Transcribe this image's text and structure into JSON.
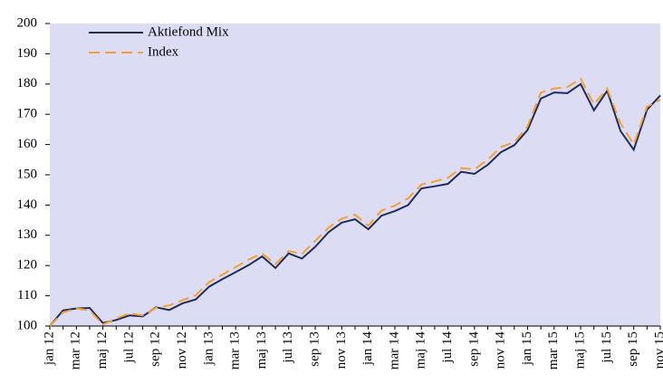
{
  "chart_data": {
    "type": "line",
    "categories": [
      "jan 12",
      null,
      "mar 12",
      null,
      "maj 12",
      null,
      "jul 12",
      null,
      "sep 12",
      null,
      "nov 12",
      null,
      "jan 13",
      null,
      "mar 13",
      null,
      "maj 13",
      null,
      "jul 13",
      null,
      "sep 13",
      null,
      "nov 13",
      null,
      "jan 14",
      null,
      "mar 14",
      null,
      "maj 14",
      null,
      "jul 14",
      null,
      "sep 14",
      null,
      "nov 14",
      null,
      "jan 15",
      null,
      "mar 15",
      null,
      "maj 15",
      null,
      "jul 15",
      null,
      "sep 15",
      null,
      "nov 15"
    ],
    "series": [
      {
        "name": "Aktiefond Mix",
        "color": "#1f2d5a",
        "dashed": false,
        "values": [
          100,
          105.2,
          105.8,
          106,
          101,
          102,
          103.5,
          103.2,
          106.2,
          105.3,
          107.5,
          108.8,
          113,
          115.5,
          117.8,
          120.2,
          123,
          119.2,
          124,
          122.3,
          126.2,
          131,
          134.2,
          135.3,
          132,
          136.5,
          138,
          140,
          145.5,
          146.2,
          147,
          151,
          150.3,
          153.3,
          157.5,
          159.8,
          164.8,
          175.2,
          177.2,
          177,
          180,
          171.3,
          177.8,
          164.5,
          158.3,
          171.5,
          176.2
        ]
      },
      {
        "name": "Index",
        "color": "#f5a030",
        "dashed": true,
        "values": [
          100,
          104.5,
          105.8,
          105.2,
          100.5,
          102.5,
          104.2,
          103.5,
          106,
          106.8,
          108.5,
          110.2,
          114.5,
          117,
          119.5,
          122,
          124,
          120.5,
          124.8,
          123.8,
          128.2,
          132.5,
          135.5,
          136.8,
          133.2,
          138.2,
          139.8,
          142.2,
          146.8,
          147.8,
          149,
          152.2,
          151.8,
          155,
          159.2,
          160.8,
          166,
          177.2,
          178.5,
          179,
          181.8,
          173.3,
          178.5,
          167,
          160,
          172.5,
          174.8
        ]
      }
    ],
    "ylim": [
      100,
      200
    ],
    "yticks": [
      100,
      110,
      120,
      130,
      140,
      150,
      160,
      170,
      180,
      190,
      200
    ],
    "grid": false,
    "legend": "upper left",
    "background": "#dcdcf5"
  }
}
